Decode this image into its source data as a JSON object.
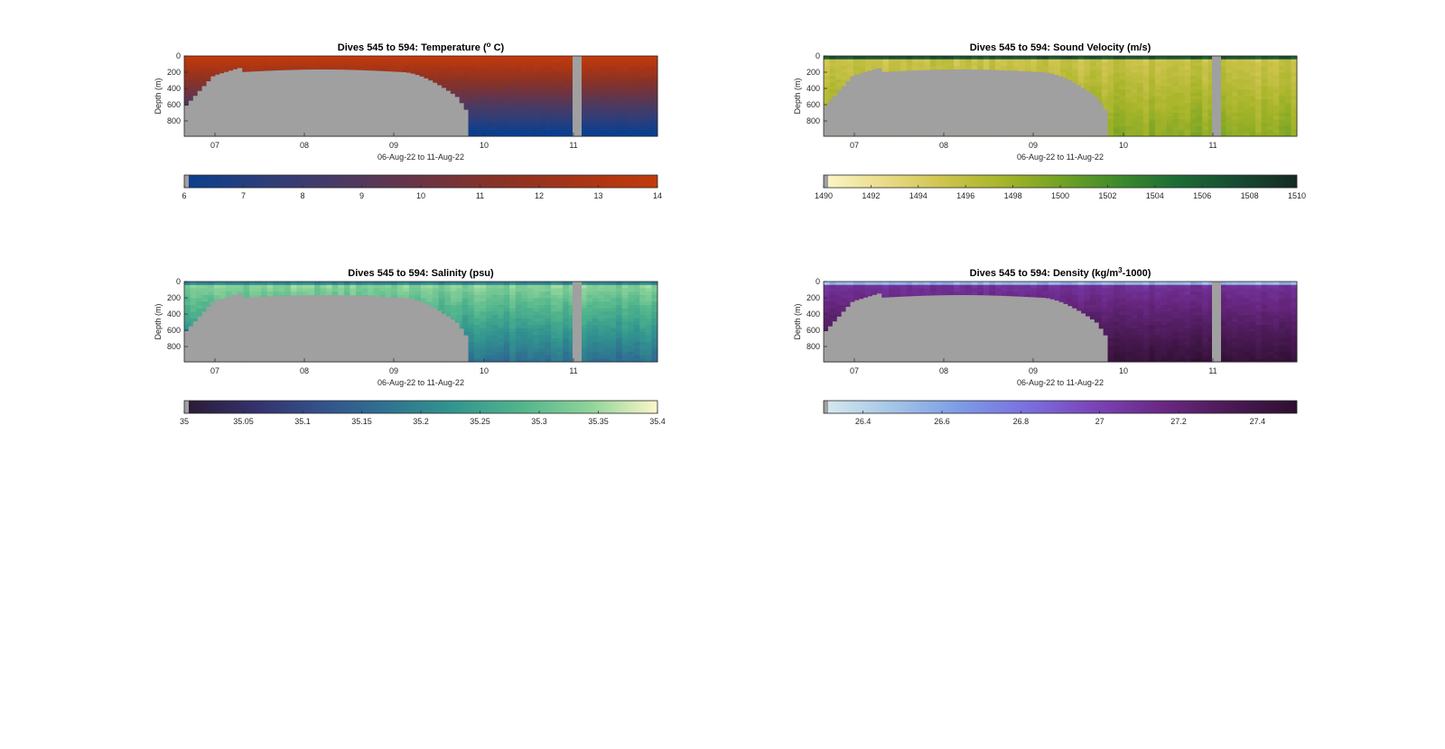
{
  "chart_data": [
    {
      "type": "heatmap",
      "title_main": "Dives 545 to 594: Temperature (",
      "title_sup": "o",
      "title_tail": " C)",
      "ylabel": "Depth (m)",
      "xlabel": "06-Aug-22 to 11-Aug-22",
      "xticks": [
        "07",
        "08",
        "09",
        "10",
        "11"
      ],
      "yticks": [
        "0",
        "200",
        "400",
        "600",
        "800"
      ],
      "ylim": [
        0,
        980
      ],
      "variable": "temperature",
      "colormap": [
        "#0a3f8f",
        "#2d3e7a",
        "#4a3a63",
        "#6a3445",
        "#8a3226",
        "#a83516",
        "#c23a0c"
      ],
      "colorbar_ticks": [
        "6",
        "7",
        "8",
        "9",
        "10",
        "11",
        "12",
        "13",
        "14"
      ],
      "clim": [
        6,
        14
      ],
      "profile": "surface-warm"
    },
    {
      "type": "heatmap",
      "title_main": "Dives 545 to 594: Sound Velocity (m/s)",
      "title_sup": "",
      "title_tail": "",
      "ylabel": "Depth (m)",
      "xlabel": "06-Aug-22 to 11-Aug-22",
      "xticks": [
        "07",
        "08",
        "09",
        "10",
        "11"
      ],
      "yticks": [
        "0",
        "200",
        "400",
        "600",
        "800"
      ],
      "ylim": [
        0,
        980
      ],
      "variable": "sound_velocity",
      "colormap": [
        "#fbf6c8",
        "#eadc8a",
        "#cfc44f",
        "#a8b52a",
        "#73a224",
        "#3c8a2c",
        "#1c6b35",
        "#174a32",
        "#142a22"
      ],
      "colorbar_ticks": [
        "1490",
        "1492",
        "1494",
        "1496",
        "1498",
        "1500",
        "1502",
        "1504",
        "1506",
        "1508",
        "1510"
      ],
      "clim": [
        1490,
        1510
      ],
      "profile": "sound"
    },
    {
      "type": "heatmap",
      "title_main": "Dives 545 to 594: Salinity (psu)",
      "title_sup": "",
      "title_tail": "",
      "ylabel": "Depth (m)",
      "xlabel": "06-Aug-22 to 11-Aug-22",
      "xticks": [
        "07",
        "08",
        "09",
        "10",
        "11"
      ],
      "yticks": [
        "0",
        "200",
        "400",
        "600",
        "800"
      ],
      "ylim": [
        0,
        980
      ],
      "variable": "salinity",
      "colormap": [
        "#2a1a33",
        "#34306a",
        "#34508c",
        "#2f7391",
        "#32968f",
        "#52b58c",
        "#8ed49a",
        "#fdf6c8"
      ],
      "colorbar_ticks": [
        "35",
        "35.05",
        "35.1",
        "35.15",
        "35.2",
        "35.25",
        "35.3",
        "35.35",
        "35.4"
      ],
      "clim": [
        35,
        35.4
      ],
      "profile": "salinity"
    },
    {
      "type": "heatmap",
      "title_main": "Dives 545 to 594: Density (kg/m",
      "title_sup": "3",
      "title_tail": "-1000)",
      "ylabel": "Depth (m)",
      "xlabel": "06-Aug-22 to 11-Aug-22",
      "xticks": [
        "07",
        "08",
        "09",
        "10",
        "11"
      ],
      "yticks": [
        "0",
        "200",
        "400",
        "600",
        "800"
      ],
      "ylim": [
        0,
        980
      ],
      "variable": "density",
      "colormap": [
        "#d6eaef",
        "#a5c6e6",
        "#7c9ce6",
        "#7a70e0",
        "#7a44b8",
        "#6a2884",
        "#4a1a55",
        "#2e0f2e"
      ],
      "colorbar_ticks": [
        "26.4",
        "26.6",
        "26.8",
        "27",
        "27.2",
        "27.4"
      ],
      "clim": [
        26.3,
        27.5
      ],
      "profile": "density"
    }
  ]
}
